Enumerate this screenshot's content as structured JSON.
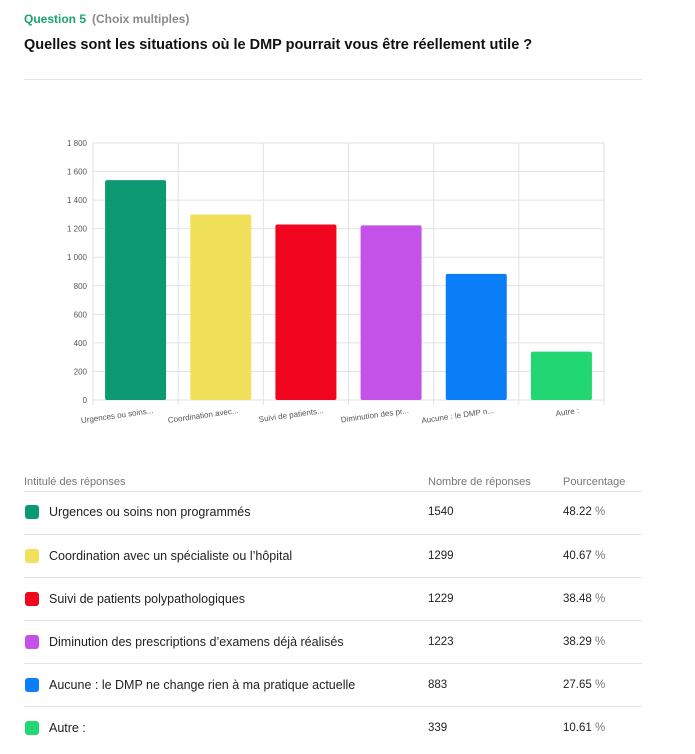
{
  "question": {
    "number_label": "Question 5",
    "type_label": "(Choix multiples)",
    "title": "Quelles sont les situations où le DMP pourrait vous être réellement utile ?"
  },
  "chart_data": {
    "type": "bar",
    "categories": [
      "Urgences ou soins...",
      "Coordination avec...",
      "Suivi de patients...",
      "Diminution des pr...",
      "Aucune : le DMP n...",
      "Autre :"
    ],
    "values": [
      1540,
      1299,
      1229,
      1223,
      883,
      339
    ],
    "colors": [
      "#0d9a73",
      "#f0e05a",
      "#f0041e",
      "#c452e8",
      "#0a7ef7",
      "#22d672"
    ],
    "ylim": [
      0,
      1800
    ],
    "yticks": [
      0,
      200,
      400,
      600,
      800,
      1000,
      1200,
      1400,
      1600,
      1800
    ],
    "ytick_labels": [
      "0",
      "200",
      "400",
      "600",
      "800",
      "1 000",
      "1 200",
      "1 400",
      "1 600",
      "1 800"
    ],
    "grid": true,
    "title": "",
    "xlabel": "",
    "ylabel": ""
  },
  "table": {
    "headers": {
      "label": "Intitulé des réponses",
      "count": "Nombre de réponses",
      "percent": "Pourcentage"
    },
    "percent_unit": "%",
    "rows": [
      {
        "label": "Urgences ou soins non programmés",
        "count": "1540",
        "percent": "48.22",
        "color": "#0d9a73"
      },
      {
        "label": "Coordination avec un spécialiste ou l’hôpital",
        "count": "1299",
        "percent": "40.67",
        "color": "#f0e05a"
      },
      {
        "label": "Suivi de patients polypathologiques",
        "count": "1229",
        "percent": "38.48",
        "color": "#f0041e"
      },
      {
        "label": "Diminution des prescriptions d’examens déjà réalisés",
        "count": "1223",
        "percent": "38.29",
        "color": "#c452e8"
      },
      {
        "label": "Aucune : le DMP ne change rien à ma pratique actuelle",
        "count": "883",
        "percent": "27.65",
        "color": "#0a7ef7"
      },
      {
        "label": "Autre :",
        "count": "339",
        "percent": "10.61",
        "color": "#22d672"
      }
    ]
  }
}
